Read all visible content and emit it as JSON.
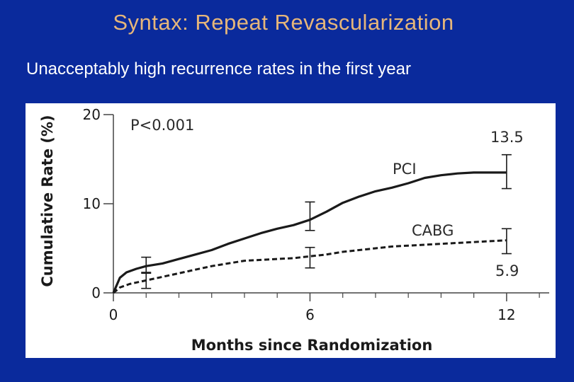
{
  "slide": {
    "title": "Syntax: Repeat Revascularization",
    "subtitle": "Unacceptably high recurrence rates in the first year"
  },
  "colors": {
    "background": "#0a2a9c",
    "title": "#e6b67a",
    "text": "#ffffff",
    "series": "#1a1a1a"
  },
  "chart_data": {
    "type": "line",
    "xlabel": "Months since Randomization",
    "ylabel": "Cumulative Rate (%)",
    "xlim": [
      0,
      13.3
    ],
    "ylim": [
      0,
      20
    ],
    "xticks": [
      0,
      6,
      12
    ],
    "xticks_minor": [
      1,
      2,
      3,
      4,
      5,
      7,
      8,
      9,
      10,
      11,
      13
    ],
    "yticks": [
      0,
      10,
      20
    ],
    "p_value": "P<0.001",
    "grid": false,
    "series": [
      {
        "name": "PCI",
        "style": "solid",
        "final_value_label": "13.5",
        "x": [
          0,
          0.2,
          0.4,
          0.7,
          1,
          1.5,
          2,
          2.5,
          3,
          3.5,
          4,
          4.5,
          5,
          5.5,
          6,
          6.5,
          7,
          7.5,
          8,
          8.5,
          9,
          9.5,
          10,
          10.5,
          11,
          11.5,
          12
        ],
        "y": [
          0,
          1.7,
          2.3,
          2.7,
          3.0,
          3.3,
          3.8,
          4.3,
          4.8,
          5.5,
          6.1,
          6.7,
          7.2,
          7.6,
          8.2,
          9.1,
          10.1,
          10.8,
          11.4,
          11.8,
          12.3,
          12.9,
          13.2,
          13.4,
          13.5,
          13.5,
          13.5
        ],
        "error_bars": [
          {
            "x": 1,
            "y": 3.0,
            "low": 2.2,
            "high": 4.0
          },
          {
            "x": 6,
            "y": 8.2,
            "low": 7.0,
            "high": 10.2
          },
          {
            "x": 12,
            "y": 13.5,
            "low": 11.7,
            "high": 15.5
          }
        ]
      },
      {
        "name": "CABG",
        "style": "dashed",
        "final_value_label": "5.9",
        "x": [
          0,
          0.2,
          0.5,
          1,
          1.5,
          2,
          2.5,
          3,
          3.5,
          4,
          4.5,
          5,
          5.5,
          6,
          6.5,
          7,
          7.5,
          8,
          8.5,
          9,
          9.5,
          10,
          10.5,
          11,
          11.5,
          12
        ],
        "y": [
          0,
          0.6,
          1.0,
          1.4,
          1.8,
          2.2,
          2.6,
          3.0,
          3.3,
          3.6,
          3.7,
          3.8,
          3.9,
          4.1,
          4.3,
          4.6,
          4.8,
          5.0,
          5.2,
          5.3,
          5.4,
          5.5,
          5.6,
          5.7,
          5.8,
          5.9
        ],
        "error_bars": [
          {
            "x": 1,
            "y": 1.4,
            "low": 0.5,
            "high": 2.3
          },
          {
            "x": 6,
            "y": 4.1,
            "low": 2.8,
            "high": 5.1
          },
          {
            "x": 12,
            "y": 5.9,
            "low": 4.4,
            "high": 7.2
          }
        ]
      }
    ]
  }
}
